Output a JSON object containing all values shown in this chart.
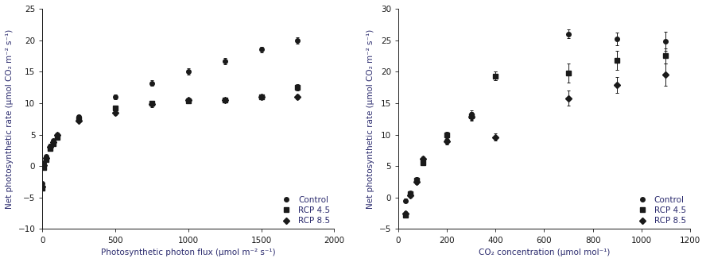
{
  "left": {
    "xlabel": "Photosynthetic photon flux (μmol m⁻² s⁻¹)",
    "ylabel": "Net photosynthetic rate (μmol CO₂ m⁻² s⁻¹)",
    "xlim": [
      0,
      2000
    ],
    "ylim": [
      -10,
      25
    ],
    "yticks": [
      -10,
      -5,
      0,
      5,
      10,
      15,
      20,
      25
    ],
    "xticks": [
      0,
      500,
      1000,
      1500,
      2000
    ],
    "series": {
      "Control": {
        "marker": "o",
        "x": [
          0,
          10,
          25,
          50,
          75,
          100,
          250,
          500,
          750,
          1000,
          1250,
          1500,
          1750
        ],
        "y": [
          -2.8,
          0.5,
          1.5,
          3.2,
          4.0,
          5.0,
          7.8,
          11.0,
          13.2,
          15.0,
          16.7,
          18.5,
          20.0
        ],
        "yerr": [
          0.3,
          0.3,
          0.3,
          0.3,
          0.3,
          0.3,
          0.3,
          0.4,
          0.5,
          0.5,
          0.5,
          0.5,
          0.5
        ]
      },
      "RCP 4.5": {
        "marker": "s",
        "x": [
          0,
          10,
          25,
          50,
          75,
          100,
          250,
          500,
          750,
          1000,
          1250,
          1500,
          1750
        ],
        "y": [
          -3.5,
          -0.2,
          1.0,
          2.8,
          3.5,
          4.5,
          7.5,
          9.2,
          10.0,
          10.4,
          10.5,
          11.0,
          12.5
        ],
        "yerr": [
          0.3,
          0.3,
          0.3,
          0.3,
          0.3,
          0.3,
          0.3,
          0.4,
          0.4,
          0.4,
          0.4,
          0.4,
          0.5
        ]
      },
      "RCP 8.5": {
        "marker": "D",
        "x": [
          0,
          10,
          25,
          50,
          75,
          100,
          250,
          500,
          750,
          1000,
          1250,
          1500,
          1750
        ],
        "y": [
          -3.2,
          0.1,
          1.3,
          3.0,
          3.8,
          5.0,
          7.2,
          8.5,
          9.8,
          10.5,
          10.5,
          11.0,
          11.0
        ],
        "yerr": [
          0.3,
          0.3,
          0.3,
          0.3,
          0.3,
          0.3,
          0.3,
          0.4,
          0.4,
          0.4,
          0.4,
          0.4,
          0.4
        ]
      }
    }
  },
  "right": {
    "xlabel": "CO₂ concentration (μmol mol⁻¹)",
    "ylabel": "Net photosynthetic rate (μmol CO₂ m⁻² s⁻¹)",
    "xlim": [
      0,
      1200
    ],
    "ylim": [
      -5,
      30
    ],
    "yticks": [
      -5,
      0,
      5,
      10,
      15,
      20,
      25,
      30
    ],
    "xticks": [
      0,
      200,
      400,
      600,
      800,
      1000,
      1200
    ],
    "series": {
      "Control": {
        "marker": "o",
        "x": [
          30,
          50,
          75,
          100,
          200,
          300,
          400,
          700,
          900,
          1100
        ],
        "y": [
          -0.5,
          0.7,
          2.8,
          5.8,
          9.0,
          13.2,
          19.3,
          26.0,
          25.2,
          24.8
        ],
        "yerr": [
          0.3,
          0.3,
          0.4,
          0.4,
          0.5,
          0.6,
          0.7,
          0.7,
          1.0,
          1.5
        ]
      },
      "RCP 4.5": {
        "marker": "s",
        "x": [
          30,
          50,
          75,
          100,
          200,
          300,
          400,
          700,
          900,
          1100
        ],
        "y": [
          -2.8,
          0.6,
          2.7,
          5.5,
          10.0,
          13.0,
          19.3,
          19.8,
          21.8,
          22.5
        ],
        "yerr": [
          0.3,
          0.3,
          0.4,
          0.4,
          0.5,
          0.6,
          0.7,
          1.5,
          1.5,
          1.2
        ]
      },
      "RCP 8.5": {
        "marker": "D",
        "x": [
          30,
          50,
          75,
          100,
          200,
          300,
          400,
          700,
          900,
          1100
        ],
        "y": [
          -2.5,
          0.3,
          2.5,
          6.1,
          8.9,
          12.8,
          9.6,
          15.8,
          17.9,
          19.5
        ],
        "yerr": [
          0.3,
          0.3,
          0.4,
          0.4,
          0.5,
          0.6,
          0.6,
          1.2,
          1.3,
          1.8
        ]
      }
    }
  },
  "label_color": "#2b2b6e",
  "tick_color": "#1a1a1a",
  "marker_color": "#1a1a1a",
  "line_color": "#1a1a1a",
  "legend_text_color": "#2b2b6e",
  "marker_size": 4,
  "fontsize": 7.5,
  "tick_fontsize": 7.5
}
